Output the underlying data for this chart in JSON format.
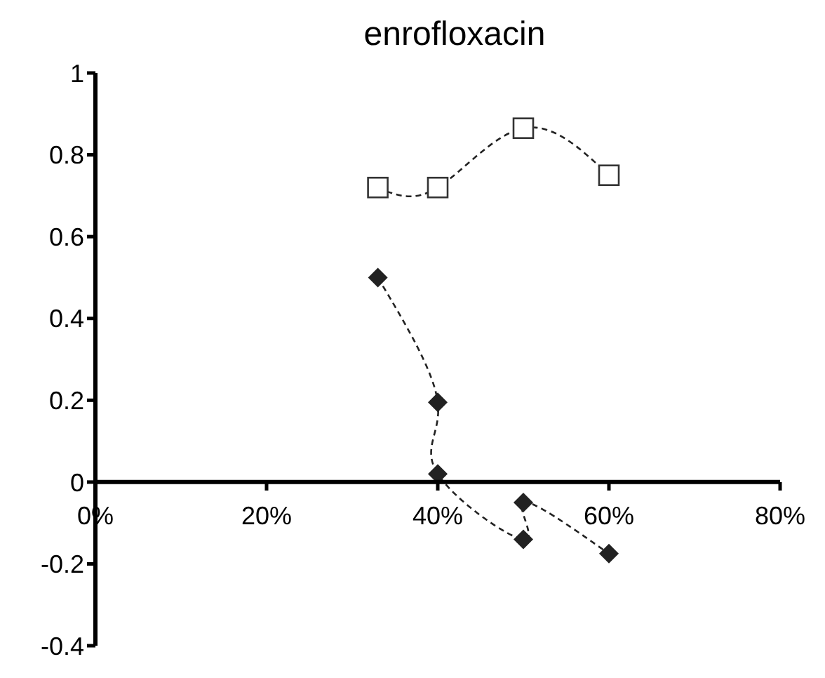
{
  "chart_data": {
    "type": "line",
    "title": "enrofloxacin",
    "xlim": [
      0,
      80
    ],
    "xticks": [
      {
        "value": 0,
        "label": "0%"
      },
      {
        "value": 20,
        "label": "20%"
      },
      {
        "value": 40,
        "label": "40%"
      },
      {
        "value": 60,
        "label": "60%"
      },
      {
        "value": 80,
        "label": "80%"
      }
    ],
    "ylim": [
      -0.4,
      1
    ],
    "yticks": [
      -0.4,
      -0.2,
      0,
      0.2,
      0.4,
      0.6,
      0.8,
      1
    ],
    "grid": false,
    "legend": false,
    "line_style": "dashed",
    "series": [
      {
        "color": "#333333",
        "marker": "square",
        "x": [
          33,
          40,
          50,
          60
        ],
        "values": [
          0.72,
          0.72,
          0.865,
          0.75
        ]
      },
      {
        "color": "#222222",
        "marker": "diamond",
        "x": [
          33,
          40,
          40,
          50,
          50,
          60
        ],
        "values": [
          0.5,
          0.195,
          0.02,
          -0.14,
          -0.05,
          -0.175
        ]
      }
    ]
  }
}
